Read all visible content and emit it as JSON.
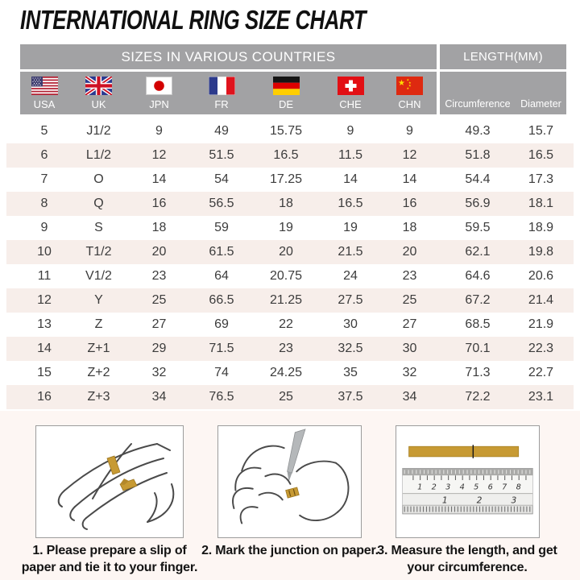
{
  "title": "INTERNATIONAL RING SIZE CHART",
  "table": {
    "header_left": "SIZES IN VARIOUS COUNTRIES",
    "header_right": "LENGTH(MM)",
    "countries": [
      {
        "code": "USA",
        "icon": "usa-flag-icon"
      },
      {
        "code": "UK",
        "icon": "uk-flag-icon"
      },
      {
        "code": "JPN",
        "icon": "japan-flag-icon"
      },
      {
        "code": "FR",
        "icon": "france-flag-icon"
      },
      {
        "code": "DE",
        "icon": "germany-flag-icon"
      },
      {
        "code": "CHE",
        "icon": "switzerland-flag-icon"
      },
      {
        "code": "CHN",
        "icon": "china-flag-icon"
      }
    ],
    "length_columns": [
      "Circumference",
      "Diameter"
    ],
    "rows": [
      [
        "5",
        "J1/2",
        "9",
        "49",
        "15.75",
        "9",
        "9",
        "49.3",
        "15.7"
      ],
      [
        "6",
        "L1/2",
        "12",
        "51.5",
        "16.5",
        "11.5",
        "12",
        "51.8",
        "16.5"
      ],
      [
        "7",
        "O",
        "14",
        "54",
        "17.25",
        "14",
        "14",
        "54.4",
        "17.3"
      ],
      [
        "8",
        "Q",
        "16",
        "56.5",
        "18",
        "16.5",
        "16",
        "56.9",
        "18.1"
      ],
      [
        "9",
        "S",
        "18",
        "59",
        "19",
        "19",
        "18",
        "59.5",
        "18.9"
      ],
      [
        "10",
        "T1/2",
        "20",
        "61.5",
        "20",
        "21.5",
        "20",
        "62.1",
        "19.8"
      ],
      [
        "11",
        "V1/2",
        "23",
        "64",
        "20.75",
        "24",
        "23",
        "64.6",
        "20.6"
      ],
      [
        "12",
        "Y",
        "25",
        "66.5",
        "21.25",
        "27.5",
        "25",
        "67.2",
        "21.4"
      ],
      [
        "13",
        "Z",
        "27",
        "69",
        "22",
        "30",
        "27",
        "68.5",
        "21.9"
      ],
      [
        "14",
        "Z+1",
        "29",
        "71.5",
        "23",
        "32.5",
        "30",
        "70.1",
        "22.3"
      ],
      [
        "15",
        "Z+2",
        "32",
        "74",
        "24.25",
        "35",
        "32",
        "71.3",
        "22.7"
      ],
      [
        "16",
        "Z+3",
        "34",
        "76.5",
        "25",
        "37.5",
        "34",
        "72.2",
        "23.1"
      ]
    ]
  },
  "steps": [
    {
      "caption": "1. Please prepare a slip of paper and tie it to your finger.",
      "illustration": "hand-with-paper-slip"
    },
    {
      "caption": "2. Mark the junction on paper.",
      "illustration": "hand-marking-paper"
    },
    {
      "caption": "3. Measure the length, and get your circumference.",
      "illustration": "ruler-measuring",
      "ruler_cm": [
        "1",
        "2",
        "3",
        "4",
        "5",
        "6",
        "7",
        "8"
      ],
      "ruler_inch": [
        "1",
        "2",
        "3"
      ]
    }
  ],
  "colors": {
    "header_bg": "#a2a2a4",
    "header_text": "#ffffff",
    "stripe_bg": "#f7eeea",
    "bottom_bg": "#fdf6f3",
    "paper_gold": "#c79a33",
    "data_text": "#3c3c3c"
  }
}
